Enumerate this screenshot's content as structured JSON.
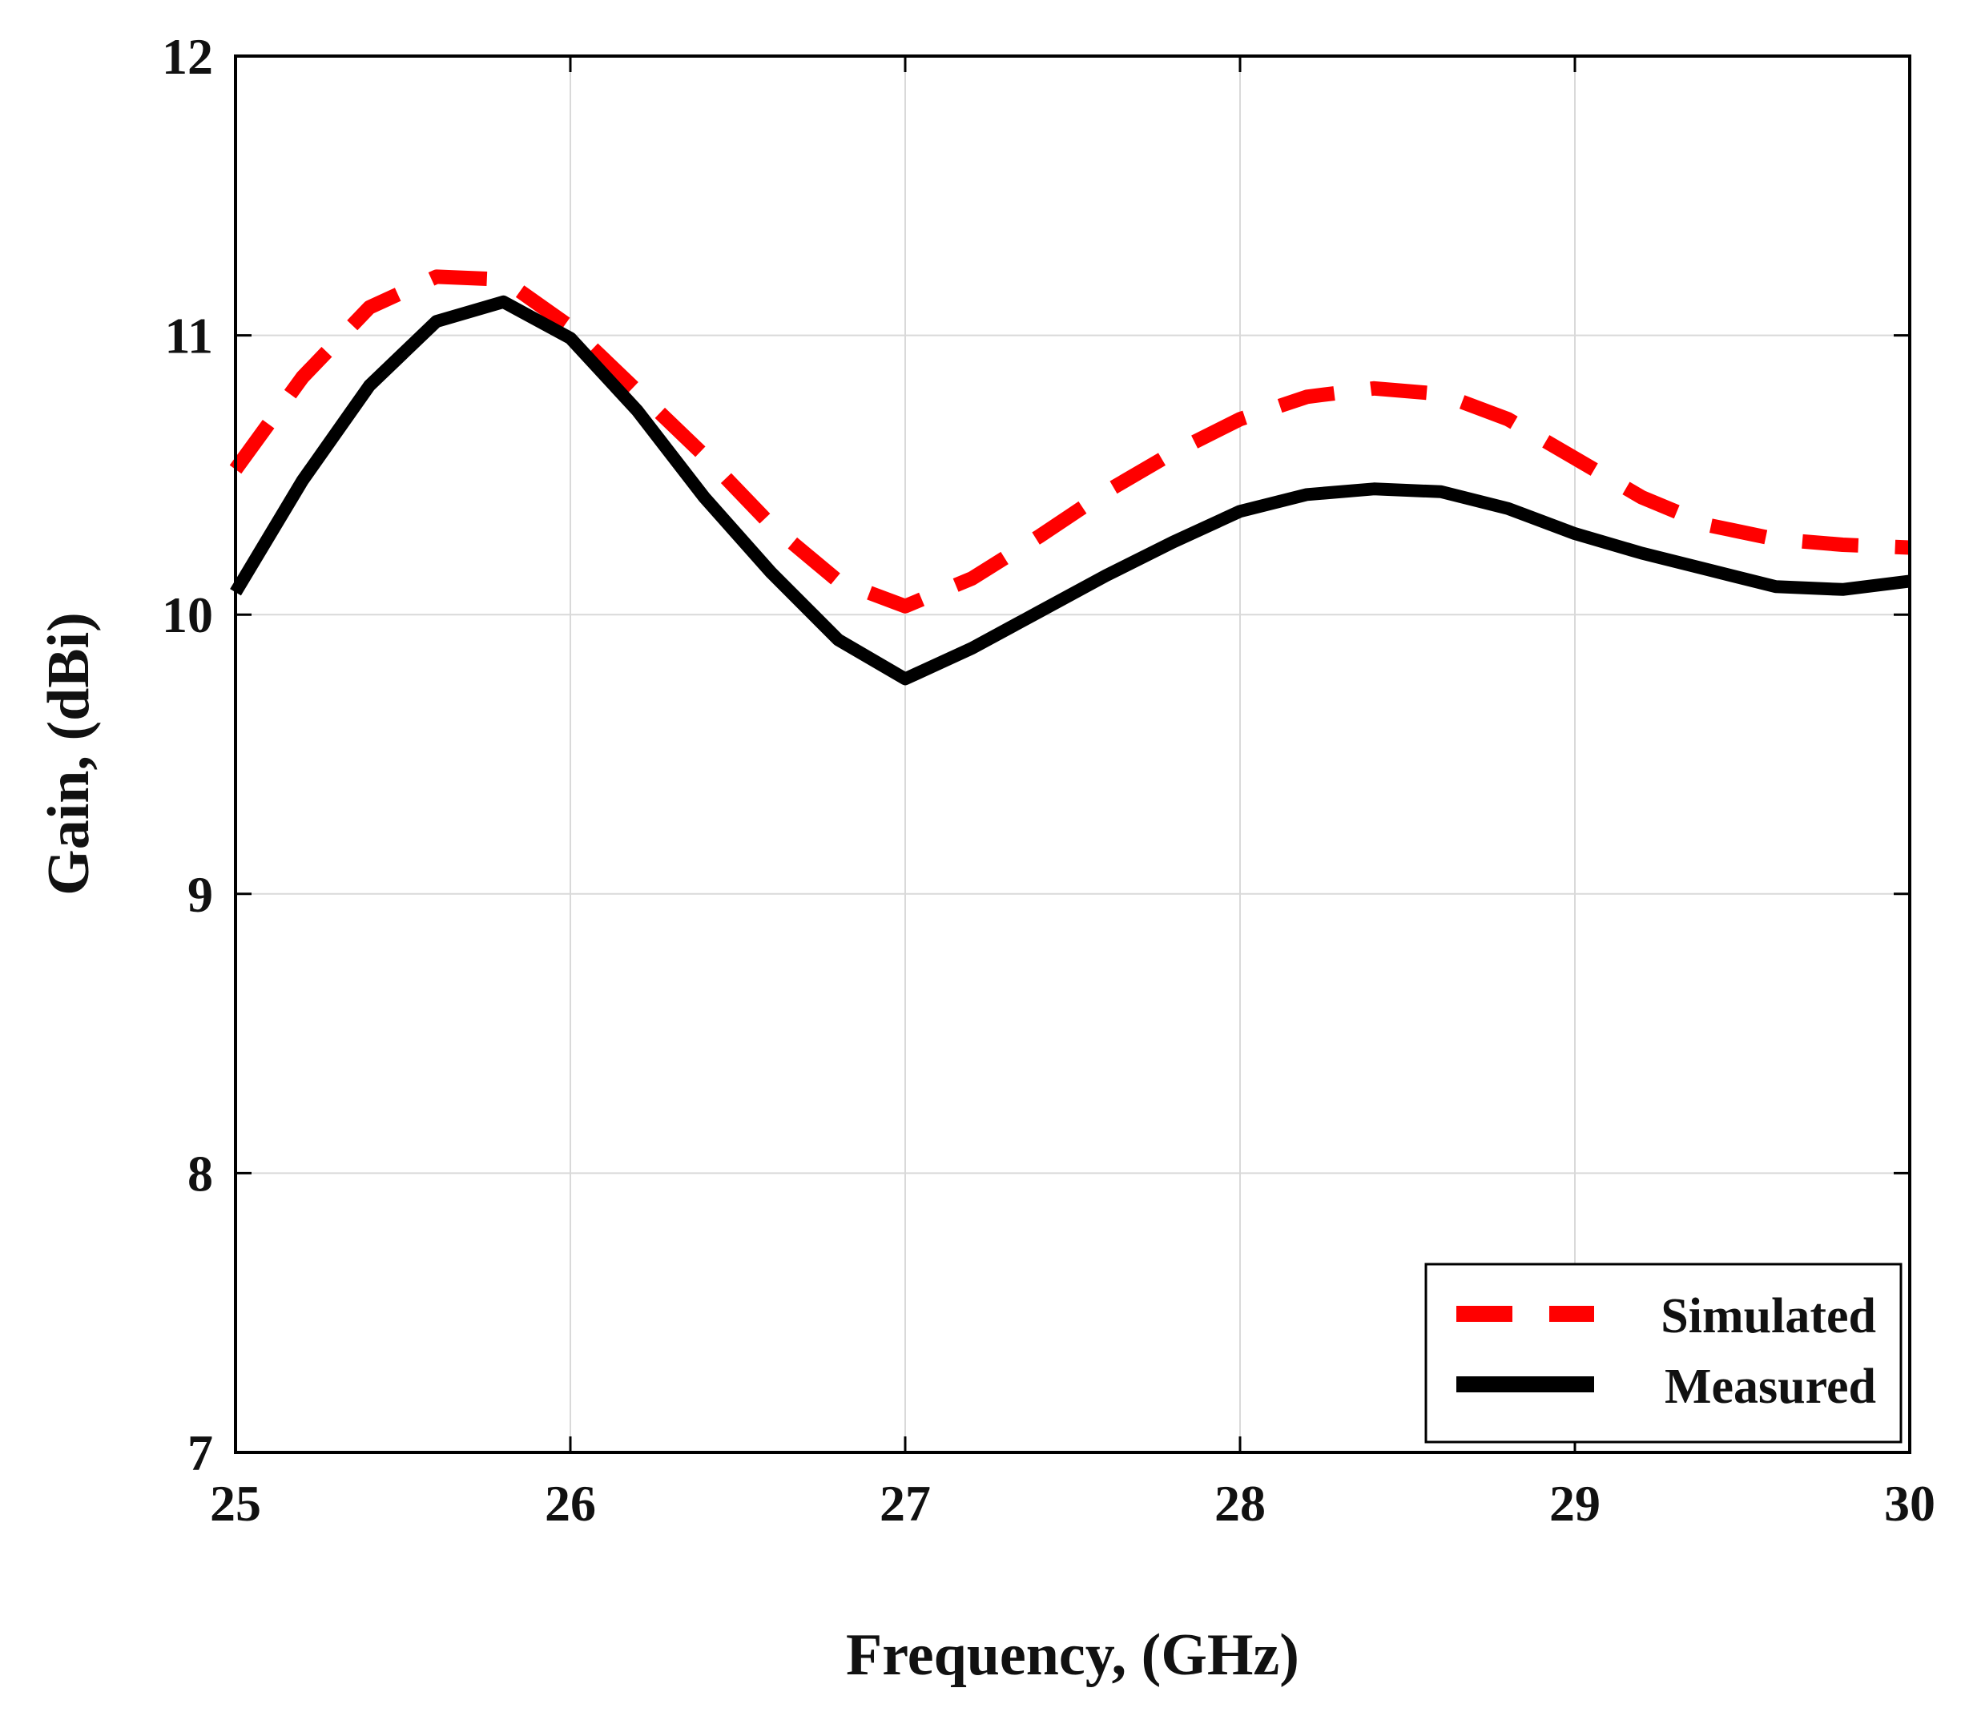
{
  "chart_data": {
    "type": "line",
    "title": "",
    "xlabel": "Frequency, (GHz)",
    "ylabel": "Gain, (dBi)",
    "xlim": [
      25,
      30
    ],
    "ylim": [
      7,
      12
    ],
    "xticks": [
      "25",
      "26",
      "27",
      "28",
      "29",
      "30"
    ],
    "yticks": [
      "7",
      "8",
      "9",
      "10",
      "11",
      "12"
    ],
    "grid": true,
    "legend_position": "bottom-right",
    "colors": {
      "simulated": "#ff0000",
      "measured": "#000000",
      "grid": "#d9d9d9"
    },
    "series": [
      {
        "name": "Simulated",
        "style": "dashed",
        "x": [
          25.0,
          25.2,
          25.4,
          25.6,
          25.8,
          26.0,
          26.2,
          26.4,
          26.6,
          26.8,
          27.0,
          27.2,
          27.4,
          27.6,
          27.8,
          28.0,
          28.2,
          28.4,
          28.6,
          28.8,
          29.0,
          29.2,
          29.4,
          29.6,
          29.8,
          30.0
        ],
        "values": [
          10.52,
          10.85,
          11.1,
          11.21,
          11.2,
          11.03,
          10.8,
          10.57,
          10.32,
          10.12,
          10.03,
          10.13,
          10.28,
          10.44,
          10.58,
          10.7,
          10.78,
          10.81,
          10.79,
          10.7,
          10.56,
          10.42,
          10.32,
          10.27,
          10.25,
          10.24
        ]
      },
      {
        "name": "Measured",
        "style": "solid",
        "x": [
          25.0,
          25.2,
          25.4,
          25.6,
          25.8,
          26.0,
          26.2,
          26.4,
          26.6,
          26.8,
          27.0,
          27.2,
          27.4,
          27.6,
          27.8,
          28.0,
          28.2,
          28.4,
          28.6,
          28.8,
          29.0,
          29.2,
          29.4,
          29.6,
          29.8,
          30.0
        ],
        "values": [
          10.08,
          10.48,
          10.82,
          11.05,
          11.12,
          10.99,
          10.73,
          10.42,
          10.15,
          9.91,
          9.77,
          9.88,
          10.01,
          10.14,
          10.26,
          10.37,
          10.43,
          10.45,
          10.44,
          10.38,
          10.29,
          10.22,
          10.16,
          10.1,
          10.09,
          10.12
        ]
      }
    ]
  }
}
